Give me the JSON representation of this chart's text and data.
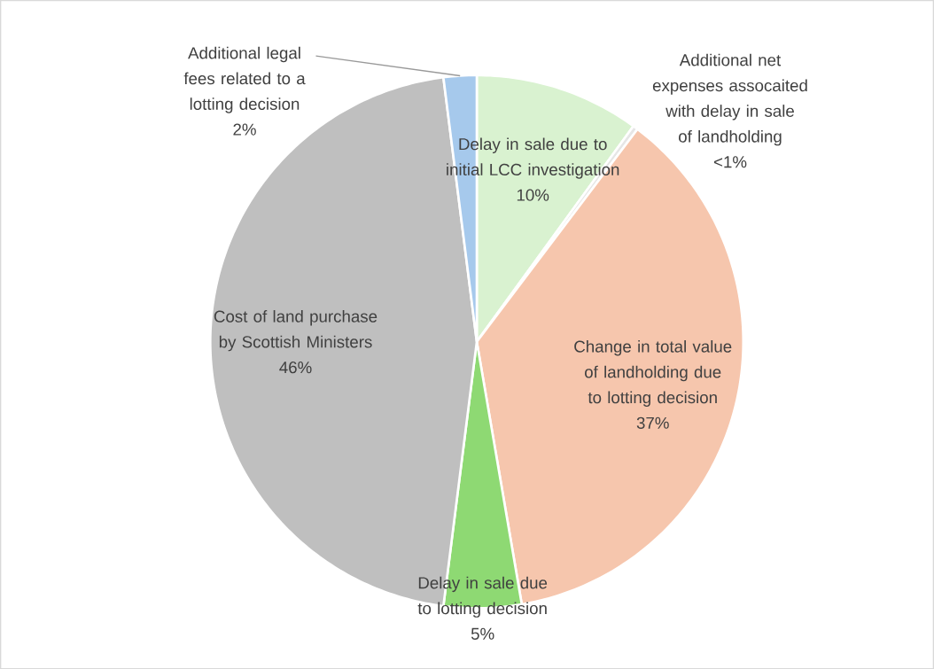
{
  "chart_data": {
    "type": "pie",
    "categories": [
      "Delay in sale due to initial LCC investigation",
      "Additional net expenses assocaited with delay in sale of landholding",
      "Change in total value of landholding due to lotting decision",
      "Delay in sale due to lotting decision",
      "Cost of land purchase by Scottish Ministers",
      "Additional legal fees related to a lotting decision"
    ],
    "values": [
      10,
      0.3,
      37,
      4.7,
      46,
      2
    ],
    "value_labels": [
      "10%",
      "<1%",
      "37%",
      "5%",
      "46%",
      "2%"
    ],
    "colors": [
      "#d9f2d0",
      "#e6e6e6",
      "#f6c6ad",
      "#8ed973",
      "#bfbfbf",
      "#a6c9ec"
    ]
  }
}
